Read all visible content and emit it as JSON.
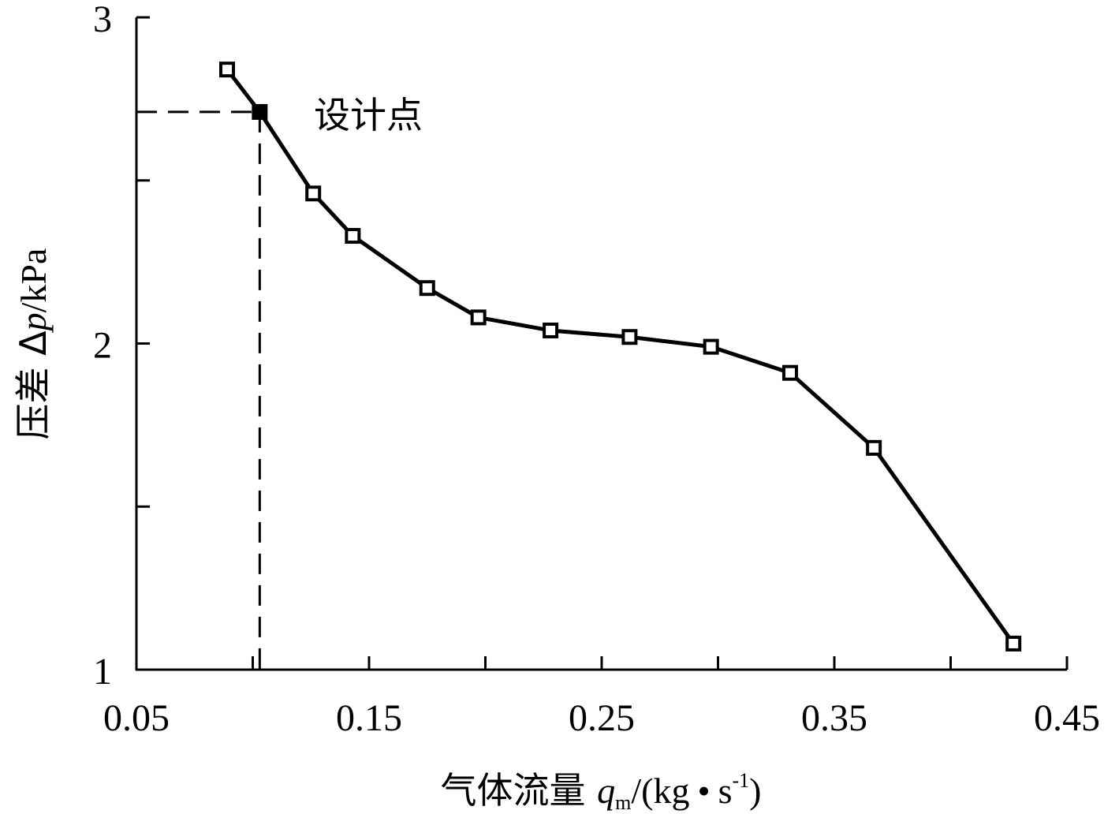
{
  "chart_data": {
    "type": "line",
    "title": "",
    "xlabel_parts": {
      "prefix": "气体流量 ",
      "var": "q",
      "sub": "m",
      "unit_open": "/(kg",
      "dot": "•",
      "unit_s": "s",
      "sup": "-1",
      "unit_close": ")"
    },
    "ylabel_parts": {
      "prefix": "压差 Δ",
      "var": "p",
      "unit": "/kPa"
    },
    "xlim": [
      0.05,
      0.45
    ],
    "ylim": [
      1,
      3
    ],
    "x_ticks_major": [
      0.05,
      0.15,
      0.25,
      0.35,
      0.45
    ],
    "x_tick_labels": [
      "0.05",
      "0.15",
      "0.25",
      "0.35",
      "0.45"
    ],
    "x_ticks_minor": [
      0.1,
      0.2,
      0.3,
      0.4
    ],
    "y_ticks_major": [
      1,
      2,
      3
    ],
    "y_tick_labels": [
      "1",
      "2",
      "3"
    ],
    "y_ticks_minor": [
      1.5,
      2.5
    ],
    "grid": false,
    "series": [
      {
        "x": [
          0.089,
          0.103,
          0.126,
          0.143,
          0.175,
          0.197,
          0.228,
          0.262,
          0.297,
          0.331,
          0.367,
          0.427
        ],
        "y": [
          2.84,
          2.71,
          2.46,
          2.33,
          2.17,
          2.08,
          2.04,
          2.02,
          1.99,
          1.91,
          1.68,
          1.08
        ]
      }
    ],
    "design_point": {
      "x": 0.103,
      "y": 2.71
    },
    "annotation": "设计点"
  }
}
